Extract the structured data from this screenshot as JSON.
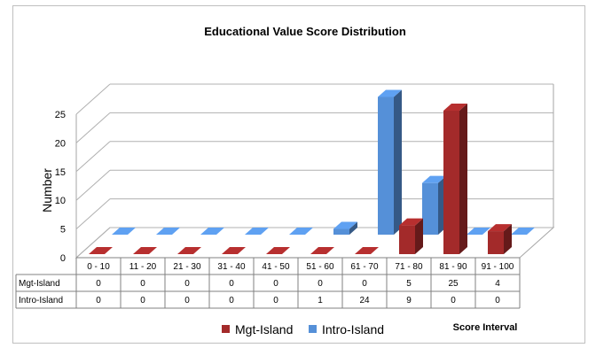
{
  "chart_data": {
    "type": "bar",
    "title": "Educational Value Score Distribution",
    "xlabel": "Score Interval",
    "ylabel": "Number",
    "ylim": [
      0,
      25
    ],
    "yticks": [
      0,
      5,
      10,
      15,
      20,
      25
    ],
    "categories": [
      "0 - 10",
      "11 - 20",
      "21 - 30",
      "31 - 40",
      "41 - 50",
      "51 - 60",
      "61 - 70",
      "71 - 80",
      "81 - 90",
      "91 - 100"
    ],
    "series": [
      {
        "name": "Mgt-Island",
        "values": [
          0,
          0,
          0,
          0,
          0,
          0,
          0,
          5,
          25,
          4
        ],
        "color": "#a32a2a"
      },
      {
        "name": "Intro-Island",
        "values": [
          0,
          0,
          0,
          0,
          0,
          1,
          24,
          9,
          0,
          0
        ],
        "color": "#5590d8"
      }
    ],
    "grid": true,
    "data_table": true,
    "legend": "bottom",
    "projection": "3d"
  }
}
